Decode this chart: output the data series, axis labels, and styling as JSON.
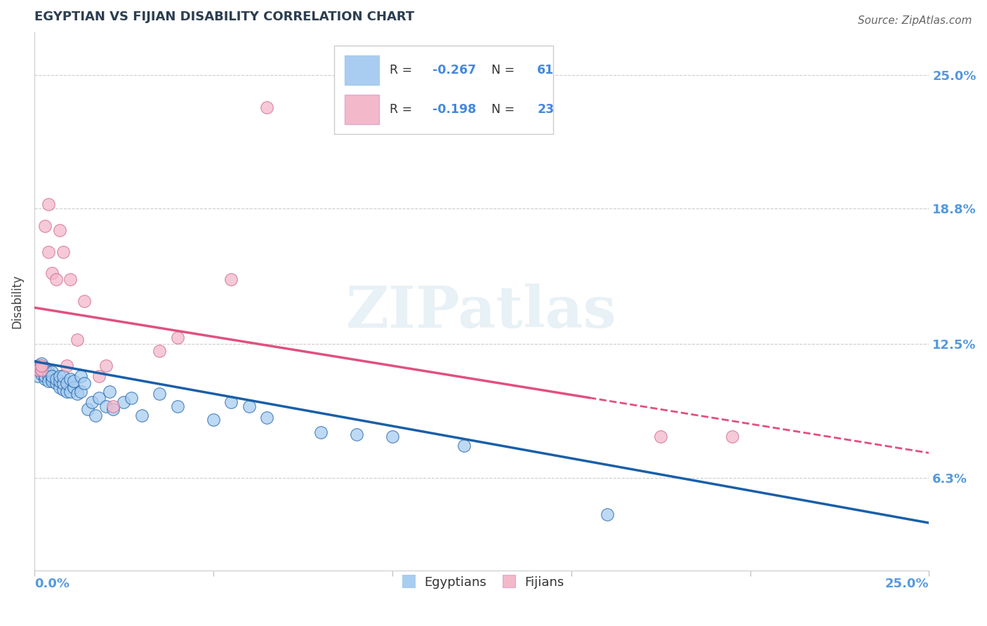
{
  "title": "EGYPTIAN VS FIJIAN DISABILITY CORRELATION CHART",
  "source": "Source: ZipAtlas.com",
  "ylabel": "Disability",
  "x_min": 0.0,
  "x_max": 0.25,
  "y_min": 0.02,
  "y_max": 0.27,
  "y_ticks": [
    0.063,
    0.125,
    0.188,
    0.25
  ],
  "y_tick_labels": [
    "6.3%",
    "12.5%",
    "18.8%",
    "25.0%"
  ],
  "egyptian_color": "#a8cdf0",
  "fijian_color": "#f4b8cb",
  "trend_egyptian_color": "#1a5fa8",
  "trend_fijian_color": "#e05080",
  "R_egyptian": -0.267,
  "N_egyptian": 61,
  "R_fijian": -0.198,
  "N_fijian": 23,
  "legend_text_color": "#333333",
  "legend_value_color": "#4488dd",
  "axis_label_color": "#5599dd",
  "source_color": "#666666",
  "title_color": "#2c3e50",
  "watermark": "ZIPatlas",
  "egyptian_x": [
    0.001,
    0.001,
    0.001,
    0.002,
    0.002,
    0.002,
    0.002,
    0.002,
    0.003,
    0.003,
    0.003,
    0.003,
    0.003,
    0.003,
    0.004,
    0.004,
    0.004,
    0.004,
    0.005,
    0.005,
    0.005,
    0.005,
    0.006,
    0.006,
    0.007,
    0.007,
    0.007,
    0.008,
    0.008,
    0.008,
    0.009,
    0.009,
    0.01,
    0.01,
    0.011,
    0.011,
    0.012,
    0.013,
    0.013,
    0.014,
    0.015,
    0.016,
    0.017,
    0.018,
    0.02,
    0.021,
    0.022,
    0.025,
    0.027,
    0.03,
    0.035,
    0.04,
    0.05,
    0.055,
    0.06,
    0.065,
    0.08,
    0.09,
    0.1,
    0.12,
    0.16
  ],
  "egyptian_y": [
    0.113,
    0.115,
    0.11,
    0.112,
    0.113,
    0.111,
    0.113,
    0.116,
    0.112,
    0.113,
    0.114,
    0.111,
    0.109,
    0.11,
    0.112,
    0.111,
    0.11,
    0.108,
    0.109,
    0.112,
    0.108,
    0.11,
    0.107,
    0.109,
    0.105,
    0.108,
    0.11,
    0.104,
    0.107,
    0.11,
    0.103,
    0.107,
    0.103,
    0.109,
    0.105,
    0.108,
    0.102,
    0.11,
    0.103,
    0.107,
    0.095,
    0.098,
    0.092,
    0.1,
    0.096,
    0.103,
    0.095,
    0.098,
    0.1,
    0.092,
    0.102,
    0.096,
    0.09,
    0.098,
    0.096,
    0.091,
    0.084,
    0.083,
    0.082,
    0.078,
    0.046
  ],
  "fijian_x": [
    0.001,
    0.002,
    0.002,
    0.003,
    0.004,
    0.004,
    0.005,
    0.006,
    0.007,
    0.008,
    0.009,
    0.01,
    0.012,
    0.014,
    0.018,
    0.02,
    0.022,
    0.035,
    0.04,
    0.055,
    0.065,
    0.175,
    0.195
  ],
  "fijian_y": [
    0.113,
    0.113,
    0.115,
    0.18,
    0.168,
    0.19,
    0.158,
    0.155,
    0.178,
    0.168,
    0.115,
    0.155,
    0.127,
    0.145,
    0.11,
    0.115,
    0.096,
    0.122,
    0.128,
    0.155,
    0.235,
    0.082,
    0.082
  ],
  "trend_fijian_solid_end": 0.155,
  "fijian_intercept": 0.142,
  "fijian_slope": -0.27,
  "egyptian_intercept": 0.117,
  "egyptian_slope": -0.3
}
